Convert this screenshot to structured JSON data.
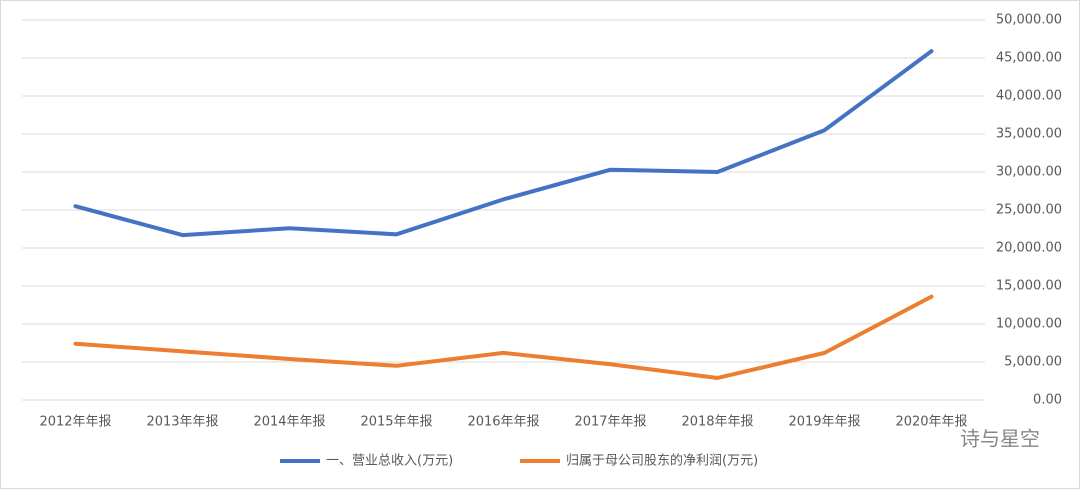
{
  "chart_data": {
    "type": "line",
    "categories": [
      "2012年年报",
      "2013年年报",
      "2014年年报",
      "2015年年报",
      "2016年年报",
      "2017年年报",
      "2018年年报",
      "2019年年报",
      "2020年年报"
    ],
    "series": [
      {
        "name": "一、营业总收入(万元)",
        "color": "#4472c4",
        "values": [
          25500,
          21700,
          22600,
          21800,
          26400,
          30300,
          30000,
          35500,
          45900
        ]
      },
      {
        "name": "归属于母公司股东的净利润(万元)",
        "color": "#ed7d31",
        "values": [
          7400,
          6400,
          5400,
          4500,
          6200,
          4700,
          2900,
          6200,
          13600
        ]
      }
    ],
    "ylim": [
      0,
      50000
    ],
    "yticks": [
      {
        "value": 0,
        "label": "0.00"
      },
      {
        "value": 5000,
        "label": "5,000.00"
      },
      {
        "value": 10000,
        "label": "10,000.00"
      },
      {
        "value": 15000,
        "label": "15,000.00"
      },
      {
        "value": 20000,
        "label": "20,000.00"
      },
      {
        "value": 25000,
        "label": "25,000.00"
      },
      {
        "value": 30000,
        "label": "30,000.00"
      },
      {
        "value": 35000,
        "label": "35,000.00"
      },
      {
        "value": 40000,
        "label": "40,000.00"
      },
      {
        "value": 45000,
        "label": "45,000.00"
      },
      {
        "value": 50000,
        "label": "50,000.00"
      }
    ],
    "grid": true,
    "legend": "bottom",
    "watermark": "诗与星空"
  }
}
